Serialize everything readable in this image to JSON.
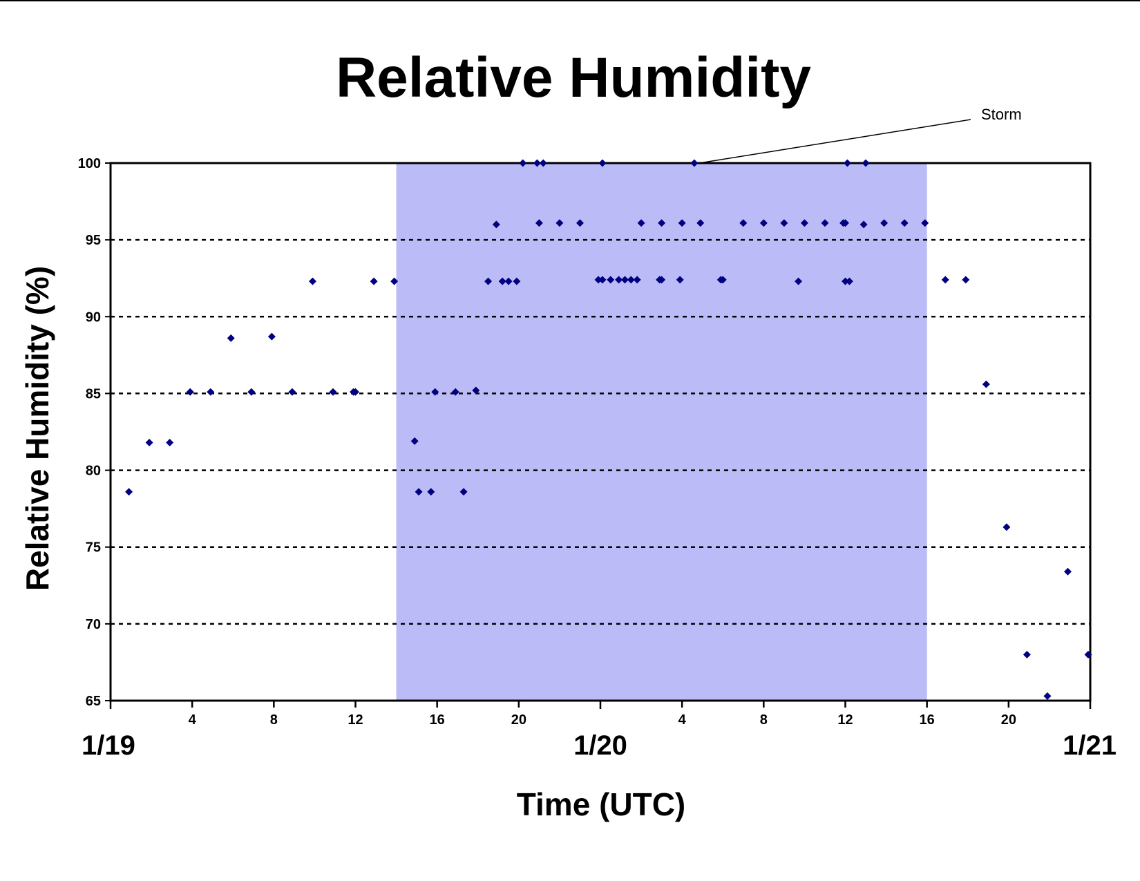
{
  "chart_data": {
    "type": "scatter",
    "title": "Relative Humidity",
    "xlabel": "Time (UTC)",
    "ylabel": "Relative Humidity (%)",
    "x_unit": "hours from 1/19 00 UTC",
    "xlim": [
      0,
      48
    ],
    "ylim": [
      65,
      100
    ],
    "y_ticks": [
      65,
      70,
      75,
      80,
      85,
      90,
      95,
      100
    ],
    "grid": "horizontal dotted",
    "x_hour_ticks": [
      {
        "x": 4,
        "label": "4"
      },
      {
        "x": 8,
        "label": "8"
      },
      {
        "x": 12,
        "label": "12"
      },
      {
        "x": 16,
        "label": "16"
      },
      {
        "x": 20,
        "label": "20"
      },
      {
        "x": 28,
        "label": "4"
      },
      {
        "x": 32,
        "label": "8"
      },
      {
        "x": 36,
        "label": "12"
      },
      {
        "x": 40,
        "label": "16"
      },
      {
        "x": 44,
        "label": "20"
      }
    ],
    "date_labels": [
      {
        "x": 0,
        "label": "1/19"
      },
      {
        "x": 24,
        "label": "1/20"
      },
      {
        "x": 48,
        "label": "1/21"
      }
    ],
    "storm_period": {
      "label": "Storm",
      "start": 14,
      "end": 40,
      "color": "#bbbbf8",
      "pointer_x": 28.5,
      "pointer_y": 100
    },
    "marker_color": "#000080",
    "points": [
      [
        0.9,
        78.6
      ],
      [
        1.9,
        81.8
      ],
      [
        2.9,
        81.8
      ],
      [
        3.9,
        85.1
      ],
      [
        4.9,
        85.1
      ],
      [
        5.9,
        88.6
      ],
      [
        6.9,
        85.1
      ],
      [
        7.9,
        88.7
      ],
      [
        8.9,
        85.1
      ],
      [
        9.9,
        92.3
      ],
      [
        10.9,
        85.1
      ],
      [
        11.9,
        85.1
      ],
      [
        12.0,
        85.1
      ],
      [
        12.9,
        92.3
      ],
      [
        13.9,
        92.3
      ],
      [
        14.9,
        81.9
      ],
      [
        15.1,
        78.6
      ],
      [
        15.7,
        78.6
      ],
      [
        15.9,
        85.1
      ],
      [
        16.9,
        85.1
      ],
      [
        17.3,
        78.6
      ],
      [
        17.9,
        85.2
      ],
      [
        18.5,
        92.3
      ],
      [
        18.9,
        96.0
      ],
      [
        19.2,
        92.3
      ],
      [
        19.5,
        92.3
      ],
      [
        19.9,
        92.3
      ],
      [
        20.2,
        100
      ],
      [
        20.9,
        100
      ],
      [
        21.2,
        100
      ],
      [
        21.0,
        96.1
      ],
      [
        22.0,
        96.1
      ],
      [
        23.0,
        96.1
      ],
      [
        23.9,
        92.4
      ],
      [
        24.1,
        92.4
      ],
      [
        24.1,
        100
      ],
      [
        24.5,
        92.4
      ],
      [
        24.9,
        92.4
      ],
      [
        25.2,
        92.4
      ],
      [
        25.5,
        92.4
      ],
      [
        25.8,
        92.4
      ],
      [
        26.0,
        96.1
      ],
      [
        26.9,
        92.4
      ],
      [
        27.0,
        92.4
      ],
      [
        27.0,
        96.1
      ],
      [
        27.9,
        92.4
      ],
      [
        28.0,
        96.1
      ],
      [
        28.6,
        100
      ],
      [
        28.9,
        96.1
      ],
      [
        29.9,
        92.4
      ],
      [
        30.0,
        92.4
      ],
      [
        31.0,
        96.1
      ],
      [
        32.0,
        96.1
      ],
      [
        33.0,
        96.1
      ],
      [
        33.7,
        92.3
      ],
      [
        34.0,
        96.1
      ],
      [
        35.0,
        96.1
      ],
      [
        35.9,
        96.1
      ],
      [
        36.0,
        96.1
      ],
      [
        36.0,
        92.3
      ],
      [
        36.2,
        92.3
      ],
      [
        36.1,
        100
      ],
      [
        36.9,
        96.0
      ],
      [
        37.0,
        100
      ],
      [
        37.9,
        96.1
      ],
      [
        38.9,
        96.1
      ],
      [
        39.9,
        96.1
      ],
      [
        40.9,
        92.4
      ],
      [
        41.9,
        92.4
      ],
      [
        42.9,
        85.6
      ],
      [
        43.9,
        76.3
      ],
      [
        44.9,
        68.0
      ],
      [
        45.9,
        65.3
      ],
      [
        46.9,
        73.4
      ],
      [
        47.9,
        68.0
      ]
    ]
  }
}
